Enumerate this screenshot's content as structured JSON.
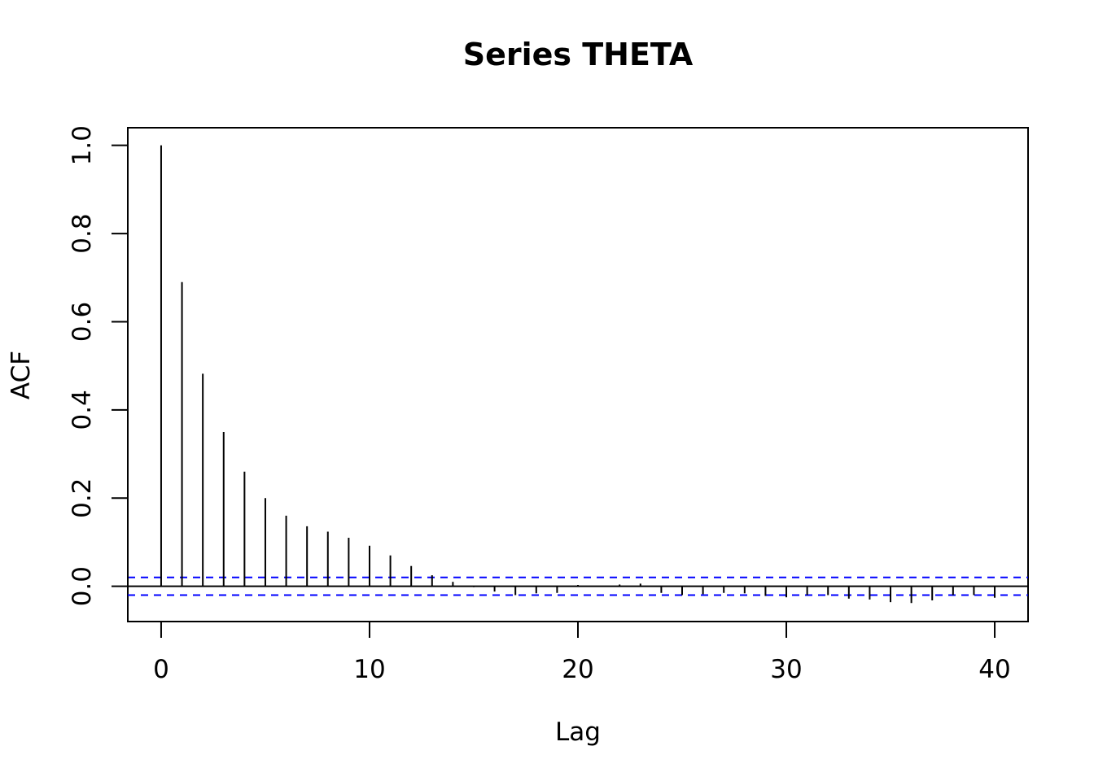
{
  "chart_data": {
    "type": "bar",
    "title": "Series  THETA",
    "xlabel": "Lag",
    "ylabel": "ACF",
    "x": [
      0,
      1,
      2,
      3,
      4,
      5,
      6,
      7,
      8,
      9,
      10,
      11,
      12,
      13,
      14,
      15,
      16,
      17,
      18,
      19,
      20,
      21,
      22,
      23,
      24,
      25,
      26,
      27,
      28,
      29,
      30,
      31,
      32,
      33,
      34,
      35,
      36,
      37,
      38,
      39,
      40
    ],
    "values": [
      1.0,
      0.69,
      0.482,
      0.35,
      0.26,
      0.2,
      0.16,
      0.136,
      0.124,
      0.11,
      0.092,
      0.07,
      0.046,
      0.025,
      0.01,
      -0.002,
      -0.012,
      -0.02,
      -0.016,
      -0.015,
      0.003,
      0.001,
      0.004,
      0.006,
      -0.015,
      -0.02,
      -0.018,
      -0.015,
      -0.016,
      -0.022,
      -0.025,
      -0.02,
      -0.02,
      -0.028,
      -0.03,
      -0.036,
      -0.038,
      -0.032,
      -0.02,
      -0.02,
      -0.026
    ],
    "confidence_bound": 0.02,
    "xlim": [
      -1.6,
      41.6
    ],
    "ylim": [
      -0.08,
      1.04
    ],
    "xticks": [
      0,
      10,
      20,
      30,
      40
    ],
    "xtick_labels": [
      "0",
      "10",
      "20",
      "30",
      "40"
    ],
    "yticks": [
      0.0,
      0.2,
      0.4,
      0.6,
      0.8,
      1.0
    ],
    "ytick_labels": [
      "0.0",
      "0.2",
      "0.4",
      "0.6",
      "0.8",
      "1.0"
    ],
    "grid": false,
    "colors": {
      "bars": "#000000",
      "zero_line": "#000000",
      "confidence_lines": "#0000ff",
      "frame": "#000000"
    }
  }
}
